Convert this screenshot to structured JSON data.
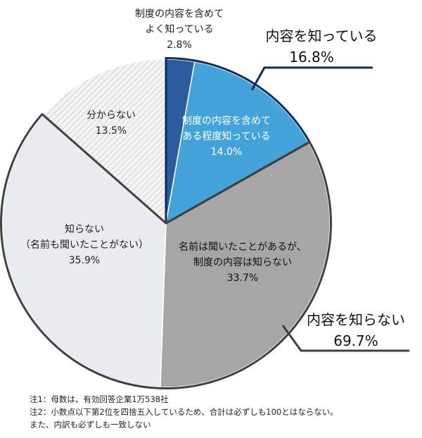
{
  "chart_data": {
    "type": "pie",
    "title": "",
    "slices": [
      {
        "label": [
          "制度の内容を含めて",
          "よく知っている"
        ],
        "value": 2.8,
        "display": "2.8%",
        "color": "#2b5c9c"
      },
      {
        "label": [
          "制度の内容を含めて",
          "ある程度知っている"
        ],
        "value": 14.0,
        "display": "14.0%",
        "color": "#44a4d9"
      },
      {
        "label": [
          "名前は聞いたことがあるが、",
          "制度の内容は知らない"
        ],
        "value": 33.7,
        "display": "33.7%",
        "color": "#a6a6a6"
      },
      {
        "label": [
          "知らない",
          "（名前も聞いたことがない）"
        ],
        "value": 35.9,
        "display": "35.9%",
        "color": "#e8ebef"
      },
      {
        "label": [
          "分からない"
        ],
        "value": 13.5,
        "display": "13.5%",
        "color": "#f2f2f2"
      }
    ],
    "groups": [
      {
        "label": "内容を知っている",
        "value": "16.8%",
        "color": "#0d2b5c"
      },
      {
        "label": "内容を知らない",
        "value": "69.7%",
        "color": "#404040"
      }
    ]
  },
  "notes": [
    "注1：母数は、有効回答企業1万538社",
    "注2：小数点以下第2位を四捨五入しているため、合計は必ずしも100とはならない。",
    "また、内訳も必ずしも一致しない"
  ]
}
